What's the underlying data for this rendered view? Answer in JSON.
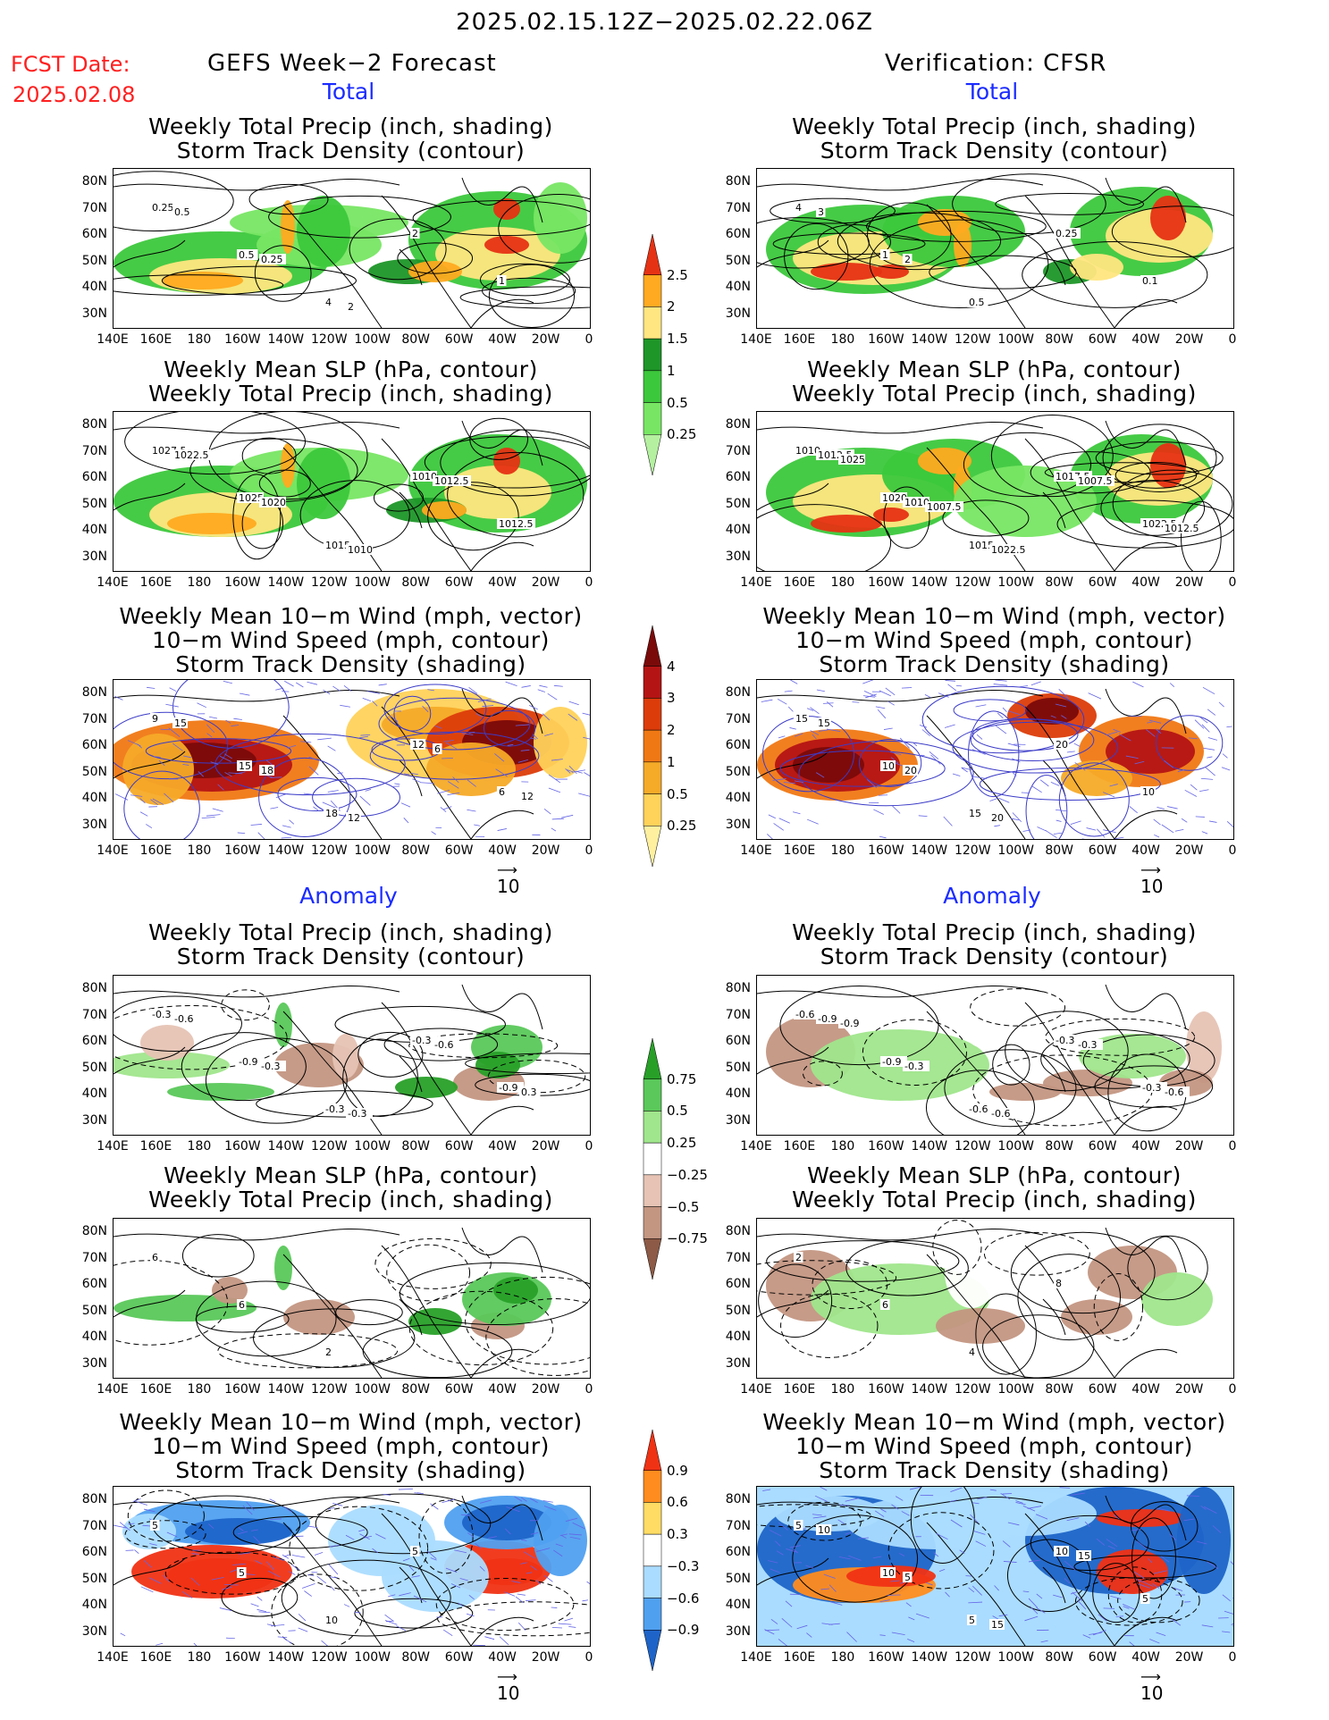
{
  "header": {
    "date_range": "2025.02.15.12Z−2025.02.22.06Z",
    "fcst_label": "FCST Date:",
    "fcst_date": "2025.02.08",
    "left_title": "GEFS Week−2 Forecast",
    "right_title": "Verification: CFSR"
  },
  "sections": {
    "total": "Total",
    "anomaly": "Anomaly"
  },
  "panel_titles": {
    "precip": [
      "Weekly Total Precip (inch, shading)",
      "Storm Track Density (contour)"
    ],
    "slp": [
      "Weekly Mean SLP (hPa, contour)",
      "Weekly Total Precip (inch, shading)"
    ],
    "wind": [
      "Weekly Mean 10−m Wind (mph, vector)",
      "10−m Wind Speed (mph, contour)",
      "Storm Track Density (shading)"
    ]
  },
  "axes": {
    "lat_ticks": [
      "80N",
      "70N",
      "60N",
      "50N",
      "40N",
      "30N"
    ],
    "lon_ticks": [
      "140E",
      "160E",
      "180",
      "160W",
      "140W",
      "120W",
      "100W",
      "80W",
      "60W",
      "40W",
      "20W",
      "0"
    ]
  },
  "vector_ref": "10",
  "colorbars": {
    "total_precip": {
      "labels": [
        "0.25",
        "0.5",
        "1",
        "1.5",
        "2",
        "2.5"
      ],
      "colors": [
        "#b4f0a0",
        "#78e664",
        "#3cc83c",
        "#1e9628",
        "#ffe680",
        "#ffaa20",
        "#e63214"
      ]
    },
    "total_storm": {
      "labels": [
        "0.25",
        "0.5",
        "1",
        "2",
        "3",
        "4"
      ],
      "colors": [
        "#fff0a0",
        "#ffd25a",
        "#f5aa28",
        "#f07814",
        "#dc3c0a",
        "#b41414",
        "#7a0a0a"
      ]
    },
    "anom_precip": {
      "labels": [
        "0.75",
        "0.5",
        "0.25",
        "−0.25",
        "−0.5",
        "−0.75"
      ],
      "colors": [
        "#28a028",
        "#5ac85a",
        "#a0e68c",
        "#ffffff",
        "#e6c3b4",
        "#c39682",
        "#8c5a46"
      ]
    },
    "anom_storm": {
      "labels": [
        "0.9",
        "0.6",
        "0.3",
        "−0.3",
        "−0.6",
        "−0.9"
      ],
      "colors": [
        "#f03214",
        "#ff8c1e",
        "#ffdc64",
        "#ffffff",
        "#aadcff",
        "#50a0f0",
        "#1e64c8"
      ]
    }
  },
  "chart_data": [
    {
      "type": "heatmap",
      "panel": "gefs-total-precip",
      "contour_labels": [
        "0.25",
        "0.5",
        "4",
        "2",
        "1",
        "0.5",
        "0.25",
        "2"
      ]
    },
    {
      "type": "heatmap",
      "panel": "cfsr-total-precip",
      "contour_labels": [
        "4",
        "1",
        "0.5",
        "0.25",
        "0.1",
        "3",
        "2"
      ]
    },
    {
      "type": "heatmap",
      "panel": "gefs-total-slp",
      "contour_labels": [
        "1027.5",
        "1025",
        "1015",
        "1010",
        "1012.5",
        "1022.5",
        "1020",
        "1010",
        "1012.5"
      ]
    },
    {
      "type": "heatmap",
      "panel": "cfsr-total-slp",
      "contour_labels": [
        "1010",
        "1020",
        "1015",
        "1017.5",
        "1022.5",
        "1012.5",
        "1010",
        "1022.5",
        "1007.5",
        "1012.5",
        "1025",
        "1007.5"
      ]
    },
    {
      "type": "heatmap",
      "panel": "gefs-total-wind",
      "contour_labels": [
        "9",
        "15",
        "18",
        "12",
        "6",
        "15",
        "18",
        "12",
        "6",
        "12"
      ]
    },
    {
      "type": "heatmap",
      "panel": "cfsr-total-wind",
      "contour_labels": [
        "15",
        "10",
        "15",
        "20",
        "10",
        "15",
        "20",
        "20"
      ]
    },
    {
      "type": "heatmap",
      "panel": "gefs-anom-precip",
      "contour_labels": [
        "-0.3",
        "-0.9",
        "-0.3",
        "-0.3",
        "-0.9",
        "-0.6",
        "-0.3",
        "-0.3",
        "-0.6",
        "0.3"
      ]
    },
    {
      "type": "heatmap",
      "panel": "cfsr-anom-precip",
      "contour_labels": [
        "-0.6",
        "-0.9",
        "-0.6",
        "-0.3",
        "-0.3",
        "-0.9",
        "-0.3",
        "-0.6",
        "-0.3",
        "-0.6",
        "-0.9"
      ]
    },
    {
      "type": "heatmap",
      "panel": "gefs-anom-slp",
      "contour_labels": [
        "6",
        "6",
        "2"
      ]
    },
    {
      "type": "heatmap",
      "panel": "cfsr-anom-slp",
      "contour_labels": [
        "2",
        "6",
        "4",
        "8"
      ]
    },
    {
      "type": "heatmap",
      "panel": "gefs-anom-wind",
      "contour_labels": [
        "5",
        "5",
        "10",
        "5"
      ]
    },
    {
      "type": "heatmap",
      "panel": "cfsr-anom-wind",
      "contour_labels": [
        "5",
        "10",
        "5",
        "10",
        "5",
        "10",
        "5",
        "15",
        "15"
      ]
    }
  ]
}
